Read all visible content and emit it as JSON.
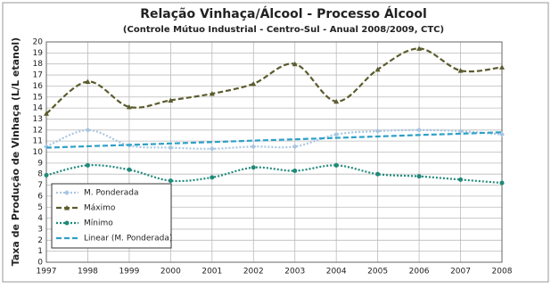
{
  "chart_data": {
    "type": "line",
    "title": "Relação Vinhaça/Álcool - Processo Álcool",
    "subtitle": "(Controle Mútuo Industrial - Centro-Sul - Anual 2008/2009, CTC)",
    "y_label": "Taxa de Produção de Vinhaça (L/L etanol)",
    "x": [
      1997,
      1998,
      1999,
      2000,
      2001,
      2002,
      2003,
      2004,
      2005,
      2006,
      2007,
      2008
    ],
    "xlim": [
      1997,
      2008
    ],
    "xticks": [
      1997,
      1998,
      1999,
      2000,
      2001,
      2002,
      2003,
      2004,
      2005,
      2006,
      2007,
      2008
    ],
    "ylim": [
      0,
      20
    ],
    "yticks": [
      0,
      1,
      2,
      3,
      4,
      5,
      6,
      7,
      8,
      9,
      10,
      11,
      12,
      13,
      14,
      15,
      16,
      17,
      18,
      19,
      20
    ],
    "grid": true,
    "legend": "lower left",
    "series": [
      {
        "name": "M. Ponderada",
        "color": "#a9c6e0",
        "style": "dotted",
        "marker": "diamond",
        "values": [
          10.5,
          12.0,
          10.6,
          10.4,
          10.3,
          10.5,
          10.5,
          11.6,
          11.9,
          12.0,
          11.9,
          11.6
        ]
      },
      {
        "name": "Máximo",
        "color": "#5b5b2e",
        "style": "dashed",
        "marker": "triangle",
        "values": [
          13.5,
          16.4,
          14.1,
          14.7,
          15.3,
          16.2,
          18.0,
          14.6,
          17.5,
          19.4,
          17.4,
          17.7
        ]
      },
      {
        "name": "Mínimo",
        "color": "#1f8a7a",
        "style": "dotted",
        "marker": "circle",
        "values": [
          7.9,
          8.8,
          8.4,
          7.4,
          7.7,
          8.6,
          8.3,
          8.8,
          8.0,
          7.8,
          7.5,
          7.2
        ]
      },
      {
        "name": "Linear (M. Ponderada)",
        "color": "#2e9fc9",
        "style": "dashed",
        "marker": "none",
        "values": [
          10.4,
          10.53,
          10.65,
          10.78,
          10.91,
          11.04,
          11.16,
          11.29,
          11.42,
          11.55,
          11.67,
          11.8
        ]
      }
    ]
  }
}
